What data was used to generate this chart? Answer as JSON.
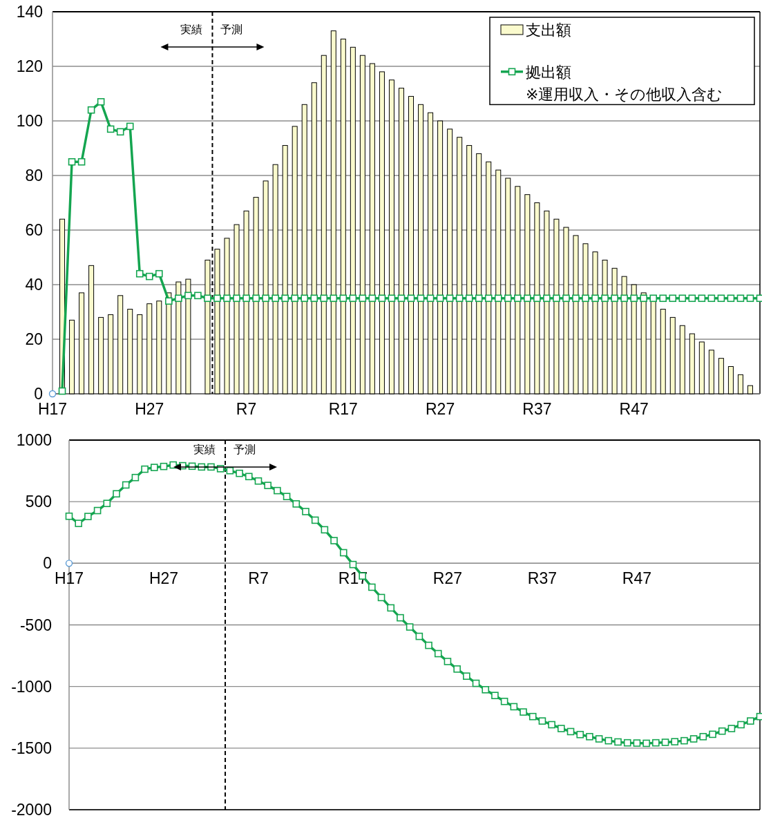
{
  "chart_data": [
    {
      "type": "bar",
      "categories": [
        "H17",
        null,
        null,
        null,
        null,
        null,
        null,
        null,
        null,
        null,
        "H27",
        null,
        null,
        null,
        null,
        null,
        null,
        null,
        null,
        null,
        "R7",
        null,
        null,
        null,
        null,
        null,
        null,
        null,
        null,
        null,
        "R17",
        null,
        null,
        null,
        null,
        null,
        null,
        null,
        null,
        null,
        "R27",
        null,
        null,
        null,
        null,
        null,
        null,
        null,
        null,
        null,
        "R37",
        null,
        null,
        null,
        null,
        null,
        null,
        null,
        null,
        null,
        "R47",
        null,
        null,
        null,
        null,
        null,
        null,
        null,
        null,
        null,
        null,
        null,
        null,
        null
      ],
      "ylim": [
        0,
        140
      ],
      "yticks": [
        0,
        20,
        40,
        60,
        80,
        100,
        120,
        140
      ],
      "grid": "y",
      "legend": "top right",
      "series": [
        {
          "name": "支出額",
          "color": "#fafacd",
          "values": [
            null,
            64,
            27,
            37,
            47,
            28,
            29,
            36,
            31,
            29,
            33,
            34,
            37,
            41,
            42,
            null,
            49,
            53,
            57,
            62,
            67,
            72,
            78,
            84,
            91,
            98,
            106,
            114,
            124,
            133,
            130,
            127,
            124,
            121,
            118,
            115,
            112,
            109,
            106,
            103,
            100,
            97,
            94,
            91,
            88,
            85,
            82,
            79,
            76,
            73,
            70,
            67,
            64,
            61,
            58,
            55,
            52,
            49,
            46,
            43,
            40,
            37,
            34,
            31,
            28,
            25,
            22,
            19,
            16,
            13,
            10,
            7,
            3,
            null
          ]
        },
        {
          "name": "拠出額\n※運用収入・その他収入含む",
          "type": "line",
          "color": "#14a550",
          "marker": "square",
          "values": [
            null,
            1,
            85,
            85,
            104,
            107,
            97,
            96,
            98,
            44,
            43,
            44,
            34,
            35,
            36,
            36,
            35,
            35,
            35,
            35,
            35,
            35,
            35,
            35,
            35,
            35,
            35,
            35,
            35,
            35,
            35,
            35,
            35,
            35,
            35,
            35,
            35,
            35,
            35,
            35,
            35,
            35,
            35,
            35,
            35,
            35,
            35,
            35,
            35,
            35,
            35,
            35,
            35,
            35,
            35,
            35,
            35,
            35,
            35,
            35,
            35,
            35,
            35,
            35,
            35,
            35,
            35,
            35,
            35,
            35,
            35,
            35,
            35,
            35
          ]
        },
        {
          "type": "scatter",
          "color": "#5b9bd5",
          "marker": "circle",
          "x": [
            "H17"
          ],
          "values": [
            0
          ]
        }
      ],
      "annotations": [
        "実績",
        "予測"
      ]
    },
    {
      "type": "line",
      "categories": [
        "H17",
        null,
        null,
        null,
        null,
        null,
        null,
        null,
        null,
        null,
        "H27",
        null,
        null,
        null,
        null,
        null,
        null,
        null,
        null,
        null,
        "R7",
        null,
        null,
        null,
        null,
        null,
        null,
        null,
        null,
        null,
        "R17",
        null,
        null,
        null,
        null,
        null,
        null,
        null,
        null,
        null,
        "R27",
        null,
        null,
        null,
        null,
        null,
        null,
        null,
        null,
        null,
        "R37",
        null,
        null,
        null,
        null,
        null,
        null,
        null,
        null,
        null,
        "R47",
        null,
        null,
        null,
        null,
        null,
        null,
        null,
        null,
        null,
        null,
        null,
        null,
        null
      ],
      "ylim": [
        -2000,
        1000
      ],
      "yticks": [
        -2000,
        -1500,
        -1000,
        -500,
        0,
        500,
        1000
      ],
      "grid": "y",
      "series": [
        {
          "color": "#14a550",
          "marker": "square",
          "values": [
            382,
            324,
            380,
            428,
            486,
            564,
            636,
            696,
            764,
            778,
            786,
            798,
            792,
            788,
            782,
            782,
            768,
            752,
            730,
            704,
            668,
            632,
            590,
            542,
            482,
            420,
            350,
            272,
            184,
            86,
            -10,
            -103,
            -194,
            -278,
            -362,
            -442,
            -517,
            -593,
            -666,
            -733,
            -797,
            -858,
            -916,
            -974,
            -1026,
            -1073,
            -1121,
            -1164,
            -1207,
            -1244,
            -1280,
            -1310,
            -1341,
            -1366,
            -1390,
            -1407,
            -1425,
            -1440,
            -1450,
            -1457,
            -1459,
            -1461,
            -1457,
            -1453,
            -1448,
            -1440,
            -1425,
            -1407,
            -1388,
            -1362,
            -1341,
            -1310,
            -1280,
            -1244
          ]
        },
        {
          "type": "scatter",
          "color": "#5b9bd5",
          "marker": "circle",
          "x": [
            "H17"
          ],
          "values": [
            0
          ]
        }
      ],
      "annotations": [
        "実績",
        "予測"
      ]
    }
  ]
}
